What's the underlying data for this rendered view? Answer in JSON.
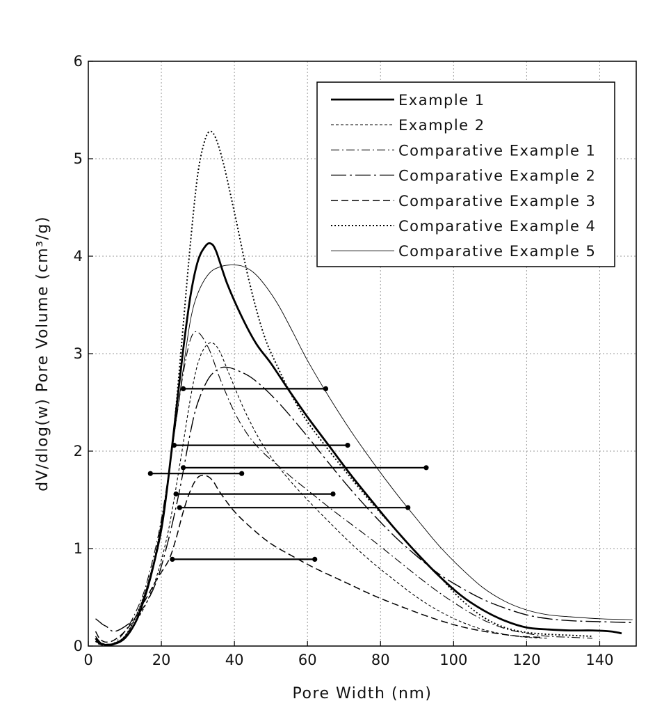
{
  "chart_data": {
    "type": "line",
    "xlabel": "Pore Width (nm)",
    "ylabel": "dV/dlog(w) Pore Volume (cm³/g)",
    "xlim": [
      0,
      150
    ],
    "ylim": [
      0,
      6
    ],
    "xticks": [
      0,
      20,
      40,
      60,
      80,
      100,
      120,
      140
    ],
    "yticks": [
      0,
      1,
      2,
      3,
      4,
      5,
      6
    ],
    "grid": true,
    "legend_position": "top-right",
    "series": [
      {
        "name": "Example 1",
        "style": "thick-solid",
        "x": [
          2,
          3,
          4,
          5,
          7,
          10,
          13,
          15,
          17,
          20,
          22,
          24,
          26,
          28,
          30,
          32,
          33.5,
          35,
          38,
          42,
          46,
          50,
          55,
          60,
          66,
          72,
          78,
          84,
          90,
          96,
          102,
          108,
          114,
          120,
          126,
          132,
          138,
          143,
          146
        ],
        "y": [
          0.08,
          0.03,
          0.02,
          0.01,
          0.02,
          0.08,
          0.25,
          0.45,
          0.7,
          1.2,
          1.75,
          2.4,
          3.05,
          3.6,
          3.95,
          4.1,
          4.13,
          4.05,
          3.72,
          3.38,
          3.1,
          2.9,
          2.62,
          2.35,
          2.05,
          1.75,
          1.47,
          1.2,
          0.95,
          0.72,
          0.52,
          0.37,
          0.26,
          0.19,
          0.17,
          0.16,
          0.16,
          0.15,
          0.13
        ]
      },
      {
        "name": "Example 2",
        "style": "fine-dash",
        "x": [
          2,
          3,
          4,
          5,
          7,
          10,
          13,
          16,
          19,
          22,
          25,
          28,
          30,
          32,
          34,
          36,
          39,
          43,
          48,
          54,
          60,
          66,
          72,
          78,
          84,
          90,
          96,
          102,
          108,
          114,
          120,
          126
        ],
        "y": [
          0.05,
          0.02,
          0.01,
          0.01,
          0.02,
          0.1,
          0.25,
          0.45,
          0.75,
          1.2,
          1.85,
          2.55,
          2.9,
          3.07,
          3.11,
          3.02,
          2.75,
          2.4,
          2.05,
          1.75,
          1.5,
          1.27,
          1.05,
          0.85,
          0.67,
          0.5,
          0.36,
          0.25,
          0.17,
          0.12,
          0.09,
          0.08
        ]
      },
      {
        "name": "Comparative Example 1",
        "style": "dash-dot",
        "x": [
          2,
          3,
          4,
          5,
          7,
          10,
          13,
          16,
          20,
          24,
          26,
          28,
          30,
          33,
          36,
          40,
          44,
          48,
          52,
          56,
          60,
          66,
          72,
          78,
          84,
          90,
          96,
          102,
          108,
          114,
          120,
          126,
          132,
          138
        ],
        "y": [
          0.1,
          0.05,
          0.02,
          0.02,
          0.03,
          0.15,
          0.35,
          0.65,
          1.3,
          2.3,
          2.8,
          3.15,
          3.22,
          3.05,
          2.75,
          2.4,
          2.15,
          1.98,
          1.85,
          1.72,
          1.6,
          1.42,
          1.25,
          1.08,
          0.9,
          0.72,
          0.55,
          0.4,
          0.27,
          0.18,
          0.13,
          0.1,
          0.09,
          0.08
        ]
      },
      {
        "name": "Comparative Example 2",
        "style": "long-dash-dot",
        "x": [
          2,
          3,
          4,
          5,
          7,
          10,
          13,
          16,
          19,
          22,
          25,
          28,
          30,
          33,
          36,
          38,
          40,
          44,
          48,
          52,
          56,
          60,
          66,
          72,
          78,
          84,
          90,
          96,
          102,
          108,
          114,
          120,
          126,
          132,
          140,
          149
        ],
        "y": [
          0.28,
          0.25,
          0.22,
          0.2,
          0.15,
          0.2,
          0.3,
          0.45,
          0.7,
          1.1,
          1.6,
          2.2,
          2.5,
          2.75,
          2.85,
          2.86,
          2.84,
          2.77,
          2.65,
          2.5,
          2.33,
          2.15,
          1.87,
          1.6,
          1.35,
          1.12,
          0.92,
          0.74,
          0.6,
          0.48,
          0.39,
          0.32,
          0.28,
          0.26,
          0.25,
          0.24
        ]
      },
      {
        "name": "Comparative Example 3",
        "style": "dash",
        "x": [
          2,
          3,
          4,
          5,
          7,
          10,
          13,
          16,
          19,
          22,
          24,
          26,
          28,
          30,
          32,
          34,
          36,
          40,
          45,
          50,
          56,
          62,
          70,
          78,
          86,
          94,
          102,
          110,
          118,
          124
        ],
        "y": [
          0.15,
          0.08,
          0.05,
          0.04,
          0.06,
          0.15,
          0.3,
          0.5,
          0.7,
          0.88,
          1.1,
          1.38,
          1.6,
          1.73,
          1.75,
          1.7,
          1.58,
          1.38,
          1.2,
          1.05,
          0.92,
          0.8,
          0.66,
          0.52,
          0.4,
          0.29,
          0.2,
          0.14,
          0.1,
          0.09
        ]
      },
      {
        "name": "Comparative Example 4",
        "style": "dotted",
        "x": [
          2,
          3,
          4,
          5,
          7,
          10,
          13,
          16,
          19,
          22,
          24,
          26,
          28,
          30,
          32,
          33.5,
          35,
          37,
          40,
          44,
          48,
          52,
          56,
          60,
          66,
          72,
          78,
          84,
          90,
          96,
          102,
          108,
          114,
          120,
          126,
          132,
          138
        ],
        "y": [
          0.05,
          0.02,
          0.01,
          0.01,
          0.02,
          0.1,
          0.3,
          0.6,
          1.05,
          1.75,
          2.45,
          3.3,
          4.15,
          4.85,
          5.2,
          5.28,
          5.2,
          4.95,
          4.45,
          3.75,
          3.2,
          2.85,
          2.55,
          2.3,
          2,
          1.72,
          1.45,
          1.2,
          0.95,
          0.72,
          0.48,
          0.3,
          0.19,
          0.14,
          0.12,
          0.11,
          0.1
        ]
      },
      {
        "name": "Comparative Example 5",
        "style": "thin-solid",
        "x": [
          2,
          3,
          4,
          5,
          7,
          10,
          13,
          16,
          19,
          22,
          24,
          26,
          28,
          30,
          33,
          36,
          39,
          42,
          45,
          48,
          52,
          56,
          60,
          66,
          72,
          78,
          84,
          90,
          96,
          102,
          108,
          114,
          120,
          126,
          132,
          140,
          149
        ],
        "y": [
          0.1,
          0.05,
          0.02,
          0.02,
          0.03,
          0.1,
          0.3,
          0.6,
          1.05,
          1.75,
          2.3,
          2.85,
          3.35,
          3.62,
          3.82,
          3.89,
          3.91,
          3.9,
          3.84,
          3.72,
          3.5,
          3.22,
          2.93,
          2.55,
          2.2,
          1.88,
          1.58,
          1.3,
          1.03,
          0.8,
          0.6,
          0.46,
          0.37,
          0.32,
          0.3,
          0.28,
          0.27
        ]
      }
    ],
    "annotations": [
      {
        "x1": 26,
        "x2": 65,
        "y": 2.64
      },
      {
        "x1": 23.5,
        "x2": 71,
        "y": 2.06
      },
      {
        "x1": 26,
        "x2": 92.5,
        "y": 1.83
      },
      {
        "x1": 17,
        "x2": 42,
        "y": 1.77
      },
      {
        "x1": 24,
        "x2": 67,
        "y": 1.56
      },
      {
        "x1": 25,
        "x2": 87.5,
        "y": 1.42
      },
      {
        "x1": 23,
        "x2": 62,
        "y": 0.89
      }
    ]
  }
}
